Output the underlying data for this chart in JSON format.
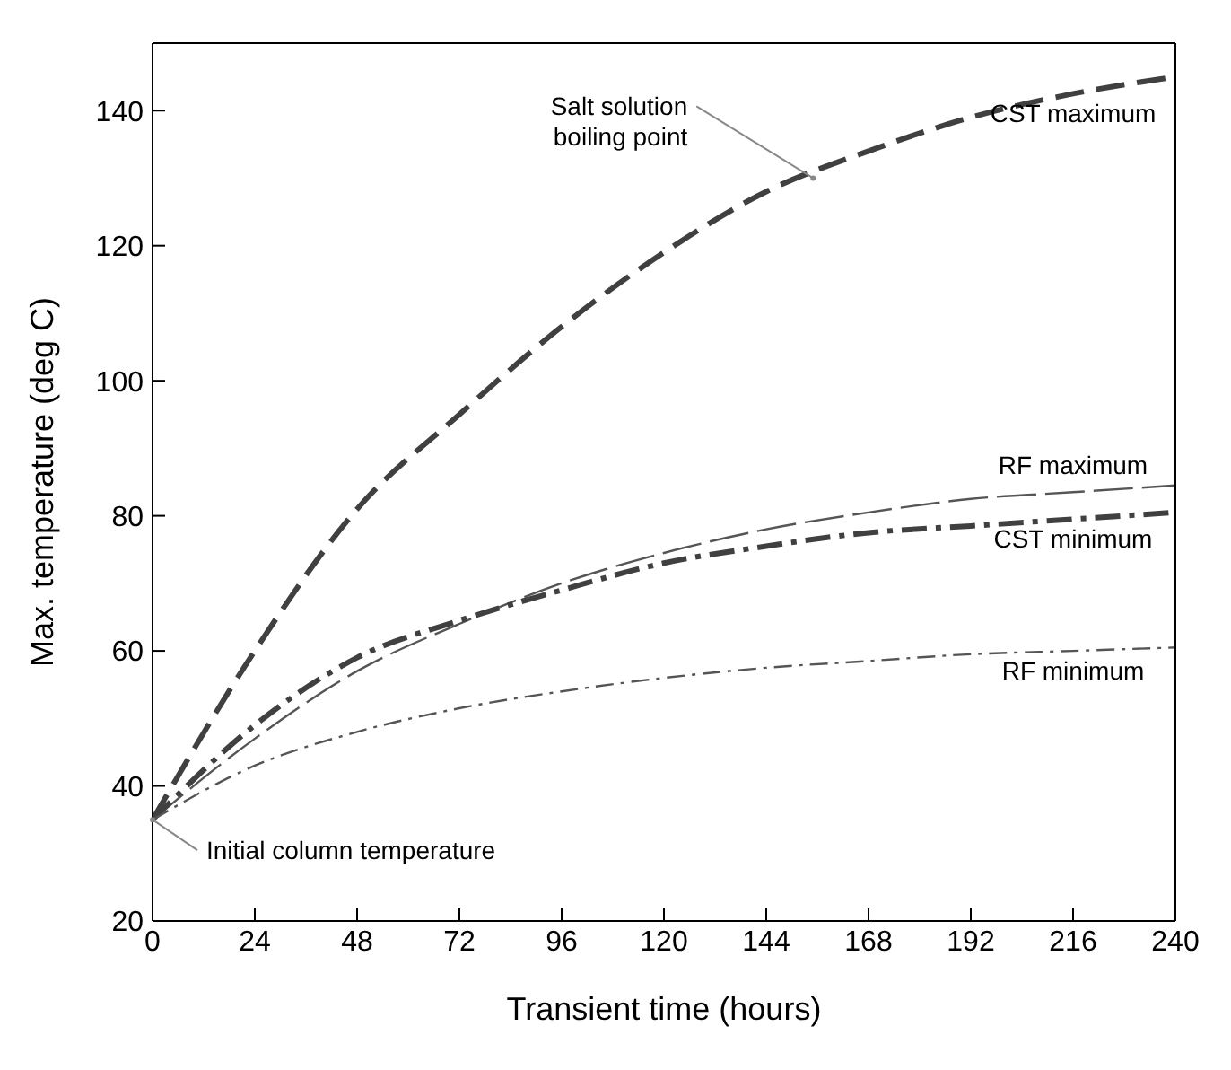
{
  "chart_data": {
    "type": "line",
    "xlabel": "Transient time (hours)",
    "ylabel": "Max. temperature (deg C)",
    "x": [
      0,
      24,
      48,
      72,
      96,
      120,
      144,
      168,
      192,
      216,
      240
    ],
    "series": [
      {
        "name": "CST maximum",
        "color": "#404040",
        "line_style": "dashed",
        "values": [
          35,
          60,
          81,
          95,
          108,
          119,
          128,
          134,
          139,
          142.5,
          145
        ]
      },
      {
        "name": "RF maximum",
        "color": "#555555",
        "line_style": "dashed",
        "values": [
          35,
          47,
          57,
          64,
          70,
          74.5,
          78,
          80.5,
          82.5,
          83.5,
          84.5
        ]
      },
      {
        "name": "CST minimum",
        "color": "#404040",
        "line_style": "dashdot",
        "values": [
          35,
          49,
          59,
          64.5,
          69,
          73,
          75.5,
          77.5,
          78.5,
          79.5,
          80.5
        ]
      },
      {
        "name": "RF minimum",
        "color": "#555555",
        "line_style": "dashdot",
        "values": [
          35,
          43,
          48,
          51.5,
          54,
          56,
          57.5,
          58.5,
          59.5,
          60,
          60.5
        ]
      }
    ],
    "xlim": [
      0,
      240
    ],
    "xticks": [
      0,
      24,
      48,
      72,
      96,
      120,
      144,
      168,
      192,
      216,
      240
    ],
    "ylim": [
      20,
      150
    ],
    "yticks": [
      20,
      40,
      60,
      80,
      100,
      120,
      140
    ],
    "annotations": [
      {
        "text": "Salt solution\nboiling point",
        "x": 155,
        "y": 130
      },
      {
        "text": "Initial column temperature",
        "x": 0,
        "y": 35
      }
    ],
    "marker": "none"
  }
}
